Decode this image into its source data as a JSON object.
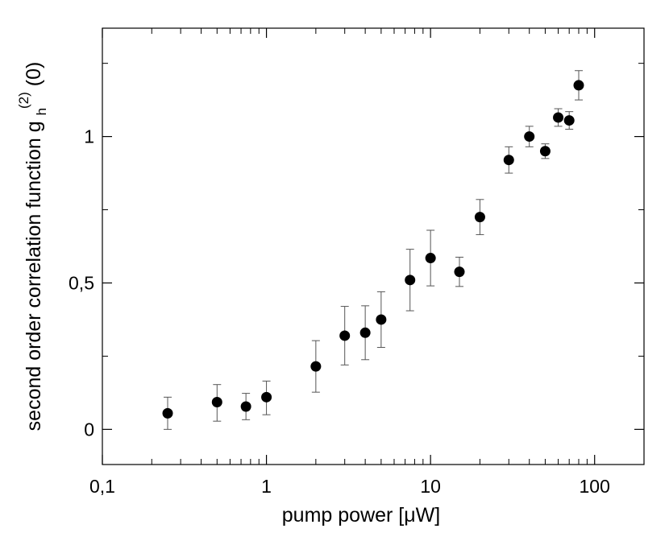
{
  "chart_data": {
    "type": "scatter",
    "title": "",
    "xlabel": "pump power [μW]",
    "ylabel": "second order correlation function g",
    "ylabel_sub": "h",
    "ylabel_sup": "(2)",
    "ylabel_suffix": "(0)",
    "xscale": "log",
    "xlim": [
      0.1,
      200
    ],
    "ylim": [
      -0.12,
      1.37
    ],
    "x_ticks": [
      0.1,
      1,
      10,
      100
    ],
    "x_tick_labels": [
      "0,1",
      "1",
      "10",
      "100"
    ],
    "y_ticks": [
      0,
      0.5,
      1
    ],
    "y_tick_labels": [
      "0",
      "0,5",
      "1"
    ],
    "grid": false,
    "legend": "none",
    "series": [
      {
        "name": "g2",
        "color": "#000000",
        "errorbar_color": "#555555",
        "x": [
          0.25,
          0.5,
          0.75,
          1,
          2,
          3,
          4,
          5,
          7.5,
          10,
          15,
          20,
          30,
          40,
          50,
          60,
          70,
          80
        ],
        "y": [
          0.055,
          0.093,
          0.078,
          0.11,
          0.215,
          0.32,
          0.33,
          0.375,
          0.51,
          0.585,
          0.538,
          0.725,
          0.92,
          1.0,
          0.95,
          1.065,
          1.055,
          1.175
        ],
        "yerr_low": [
          0.055,
          0.065,
          0.045,
          0.06,
          0.088,
          0.1,
          0.092,
          0.095,
          0.105,
          0.095,
          0.05,
          0.06,
          0.045,
          0.035,
          0.025,
          0.03,
          0.03,
          0.05
        ],
        "yerr_high": [
          0.055,
          0.06,
          0.045,
          0.055,
          0.088,
          0.1,
          0.092,
          0.095,
          0.105,
          0.095,
          0.05,
          0.06,
          0.045,
          0.035,
          0.025,
          0.03,
          0.03,
          0.05
        ]
      }
    ]
  }
}
